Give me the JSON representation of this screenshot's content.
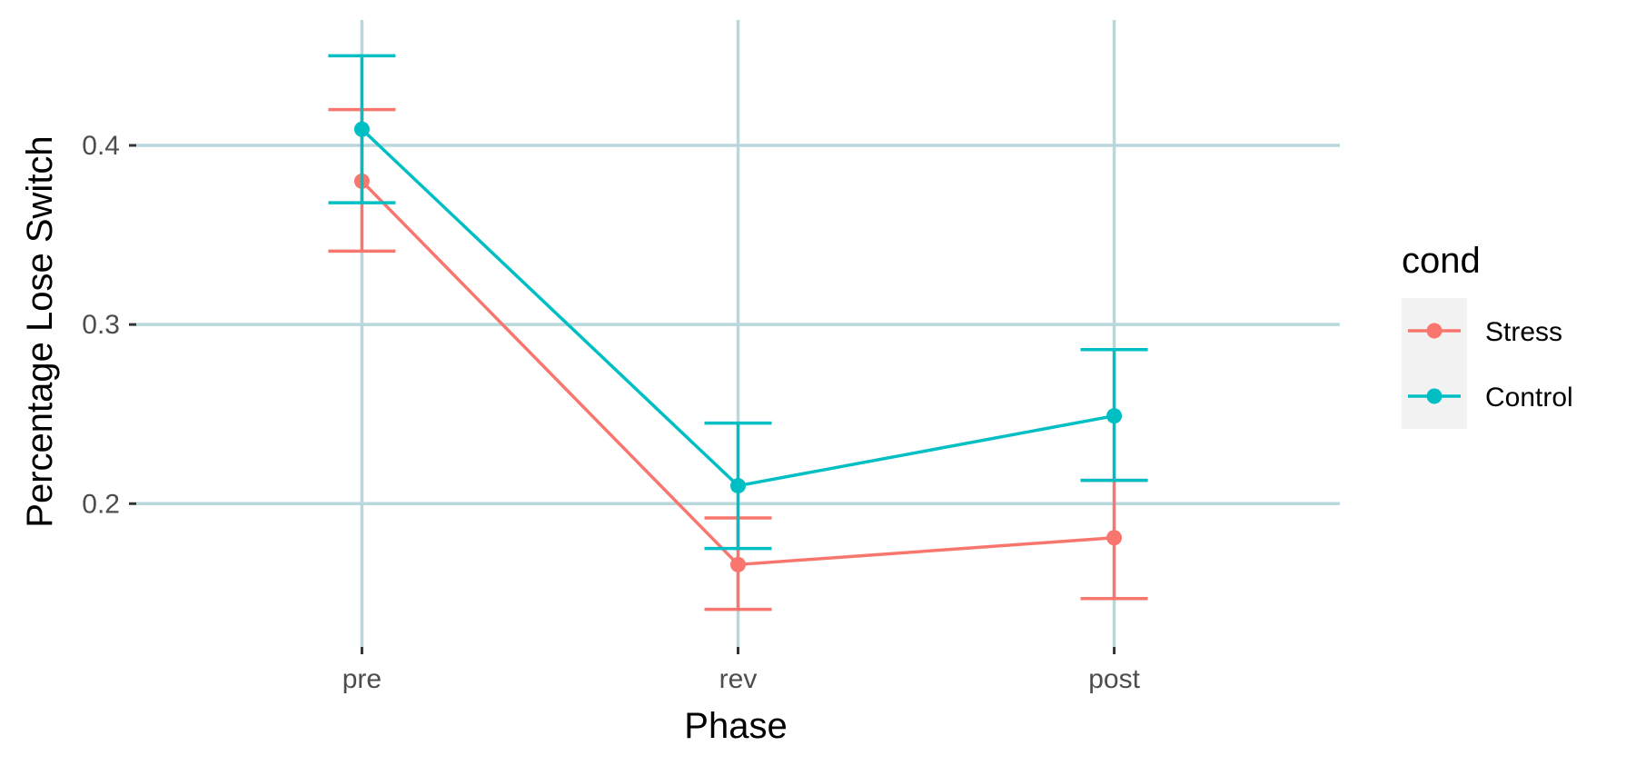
{
  "chart_data": {
    "type": "line",
    "title": "",
    "xlabel": "Phase",
    "ylabel": "Percentage Lose Switch",
    "categories": [
      "pre",
      "rev",
      "post"
    ],
    "ylim": [
      0.12,
      0.47
    ],
    "yticks": [
      0.2,
      0.3,
      0.4
    ],
    "ytick_labels": [
      "0.2",
      "0.3",
      "0.4"
    ],
    "grid": true,
    "error_bars": true,
    "legend": {
      "title": "cond",
      "placement": "right"
    },
    "series": [
      {
        "name": "Stress",
        "color": "#F8766D",
        "values": [
          0.38,
          0.166,
          0.181
        ],
        "lower": [
          0.341,
          0.141,
          0.147
        ],
        "upper": [
          0.42,
          0.192,
          0.213
        ]
      },
      {
        "name": "Control",
        "color": "#00BFC4",
        "values": [
          0.409,
          0.21,
          0.249
        ],
        "lower": [
          0.368,
          0.175,
          0.213
        ],
        "upper": [
          0.45,
          0.245,
          0.286
        ]
      }
    ]
  },
  "colors": {
    "grid": "#b8d8dd",
    "legend_key_bg": "#f2f2f2",
    "tick_mark": "#333333"
  }
}
